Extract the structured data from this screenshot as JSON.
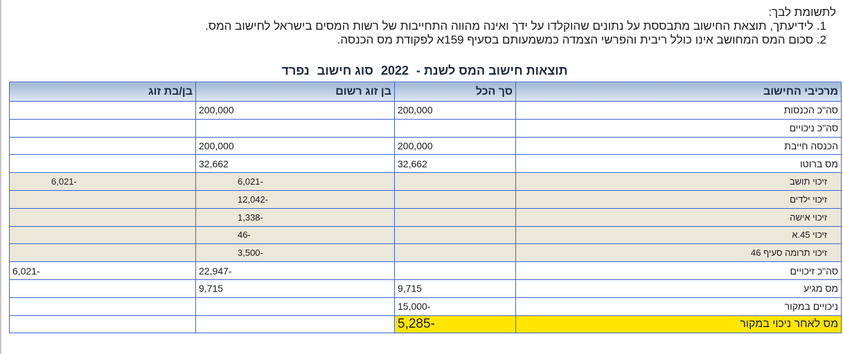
{
  "notes": {
    "heading": "לתשומת לבך:",
    "items": [
      "1. לידיעתך, תוצאת החישוב מתבססת על נתונים שהוקלדו על ידך ואינה מהווה התחייבות של רשות המסים בישראל לחישוב המס.",
      "2. סכום המס המחושב אינו כולל ריבית והפרשי הצמדה כמשמעותם בסעיף 159א לפקודת מס הכנסה."
    ]
  },
  "title": {
    "prefix": "תוצאות חישוב המס לשנת -",
    "year": "2022",
    "type_label": "סוג חישוב",
    "type_value": "נפרד"
  },
  "table": {
    "headers": [
      "מרכיבי החישוב",
      "סך הכל",
      "בן זוג רשום",
      "בן/בת זוג"
    ],
    "rows": [
      {
        "label": "סה\"כ הכנסות",
        "total": "200,000",
        "registered": "200,000",
        "spouse": ""
      },
      {
        "label": "סה\"כ ניכויים",
        "total": "",
        "registered": "",
        "spouse": ""
      },
      {
        "label": "הכנסה חייבת",
        "total": "200,000",
        "registered": "200,000",
        "spouse": ""
      },
      {
        "label": "מס ברוטו",
        "total": "32,662",
        "registered": "32,662",
        "spouse": ""
      },
      {
        "label": "זיכוי תושב",
        "total": "",
        "registered": "-6,021",
        "spouse": "-6,021"
      },
      {
        "label": "זיכוי ילדים",
        "total": "",
        "registered": "-12,042",
        "spouse": ""
      },
      {
        "label": "זיכוי אישה",
        "total": "",
        "registered": "-1,338",
        "spouse": ""
      },
      {
        "label": "זיכוי 45.א",
        "total": "",
        "registered": "-46",
        "spouse": ""
      },
      {
        "label": "זיכוי תרומה סעיף 46",
        "total": "",
        "registered": "-3,500",
        "spouse": ""
      },
      {
        "label": "סה\"כ זיכויים",
        "total": "",
        "registered": "-22,947",
        "spouse": "-6,021"
      },
      {
        "label": "מס מגיע",
        "total": "9,715",
        "registered": "9,715",
        "spouse": ""
      },
      {
        "label": "ניכויים במקור",
        "total": "-15,000",
        "registered": "",
        "spouse": ""
      },
      {
        "label": "מס לאחר ניכוי במקור",
        "total": "-5,285",
        "registered": "",
        "spouse": ""
      }
    ]
  },
  "colors": {
    "header_border": "#3b63d6",
    "credit_row_bg": "#ebe7d9",
    "highlight": "#ffe600"
  }
}
